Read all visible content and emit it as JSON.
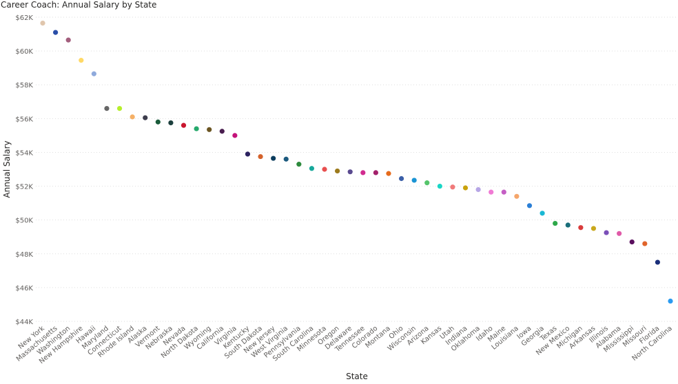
{
  "title": "Career Coach: Annual Salary by State",
  "chart_data": {
    "type": "scatter",
    "title": "Career Coach: Annual Salary by State",
    "xlabel": "State",
    "ylabel": "Annual Salary",
    "ylim": [
      44000,
      62000
    ],
    "yticks": [
      {
        "value": 44000,
        "label": "$44K"
      },
      {
        "value": 46000,
        "label": "$46K"
      },
      {
        "value": 48000,
        "label": "$48K"
      },
      {
        "value": 50000,
        "label": "$50K"
      },
      {
        "value": 52000,
        "label": "$52K"
      },
      {
        "value": 54000,
        "label": "$54K"
      },
      {
        "value": 56000,
        "label": "$56K"
      },
      {
        "value": 58000,
        "label": "$58K"
      },
      {
        "value": 60000,
        "label": "$60K"
      },
      {
        "value": 62000,
        "label": "$62K"
      }
    ],
    "grid": true,
    "points": [
      {
        "state": "New York",
        "value": 61650,
        "color": "#e0c6ad"
      },
      {
        "state": "Massachusetts",
        "value": 61100,
        "color": "#2a4ea8"
      },
      {
        "state": "Washington",
        "value": 60650,
        "color": "#a35e7d"
      },
      {
        "state": "New Hampshire",
        "value": 59450,
        "color": "#ffd966"
      },
      {
        "state": "Hawaii",
        "value": 58650,
        "color": "#8faadc"
      },
      {
        "state": "Maryland",
        "value": 56600,
        "color": "#666666"
      },
      {
        "state": "Connecticut",
        "value": 56600,
        "color": "#b6ef2c"
      },
      {
        "state": "Rhode Island",
        "value": 56100,
        "color": "#f5b066"
      },
      {
        "state": "Alaska",
        "value": 56050,
        "color": "#3d3d4d"
      },
      {
        "state": "Vermont",
        "value": 55800,
        "color": "#1a5c3a"
      },
      {
        "state": "Nebraska",
        "value": 55750,
        "color": "#1c3f3d"
      },
      {
        "state": "Nevada",
        "value": 55600,
        "color": "#c9162f"
      },
      {
        "state": "North Dakota",
        "value": 55400,
        "color": "#26a96c"
      },
      {
        "state": "Wyoming",
        "value": 55350,
        "color": "#6b5522"
      },
      {
        "state": "California",
        "value": 55250,
        "color": "#4a1e4f"
      },
      {
        "state": "Virginia",
        "value": 55000,
        "color": "#c4137a"
      },
      {
        "state": "Kentucky",
        "value": 53900,
        "color": "#2c2260"
      },
      {
        "state": "South Dakota",
        "value": 53750,
        "color": "#d4622b"
      },
      {
        "state": "New Jersey",
        "value": 53650,
        "color": "#0b3c5d"
      },
      {
        "state": "West Virginia",
        "value": 53600,
        "color": "#1c5a7e"
      },
      {
        "state": "Pennsylvania",
        "value": 53300,
        "color": "#2e8a3d"
      },
      {
        "state": "South Carolina",
        "value": 53050,
        "color": "#17a89b"
      },
      {
        "state": "Minnesota",
        "value": 53000,
        "color": "#e84f4f"
      },
      {
        "state": "Oregon",
        "value": 52900,
        "color": "#9c7a1c"
      },
      {
        "state": "Delaware",
        "value": 52850,
        "color": "#5a4a8f"
      },
      {
        "state": "Tennessee",
        "value": 52800,
        "color": "#d12b8f"
      },
      {
        "state": "Colorado",
        "value": 52800,
        "color": "#a3216b"
      },
      {
        "state": "Montana",
        "value": 52750,
        "color": "#e66b1c"
      },
      {
        "state": "Ohio",
        "value": 52450,
        "color": "#3b5fa8"
      },
      {
        "state": "Wisconsin",
        "value": 52350,
        "color": "#1a94d4"
      },
      {
        "state": "Arizona",
        "value": 52200,
        "color": "#55c46b"
      },
      {
        "state": "Kansas",
        "value": 52000,
        "color": "#19d6c6"
      },
      {
        "state": "Utah",
        "value": 51950,
        "color": "#f07a7a"
      },
      {
        "state": "Indiana",
        "value": 51900,
        "color": "#c9a20c"
      },
      {
        "state": "Oklahoma",
        "value": 51800,
        "color": "#b7a6e6"
      },
      {
        "state": "Idaho",
        "value": 51650,
        "color": "#f07ad4"
      },
      {
        "state": "Maine",
        "value": 51650,
        "color": "#c45ec4"
      },
      {
        "state": "Louisiana",
        "value": 51400,
        "color": "#f5a66b"
      },
      {
        "state": "Iowa",
        "value": 50850,
        "color": "#2b7fd6"
      },
      {
        "state": "Georgia",
        "value": 50400,
        "color": "#1ab8d4"
      },
      {
        "state": "Texas",
        "value": 49800,
        "color": "#2ea84a"
      },
      {
        "state": "New Mexico",
        "value": 49700,
        "color": "#1a6e7a"
      },
      {
        "state": "Michigan",
        "value": 49550,
        "color": "#d93b3b"
      },
      {
        "state": "Arkansas",
        "value": 49500,
        "color": "#c9a81c"
      },
      {
        "state": "Illinois",
        "value": 49250,
        "color": "#7b4fb8"
      },
      {
        "state": "Alabama",
        "value": 49200,
        "color": "#e05aa8"
      },
      {
        "state": "Mississippi",
        "value": 48700,
        "color": "#5a0f5e"
      },
      {
        "state": "Missouri",
        "value": 48600,
        "color": "#e0642b"
      },
      {
        "state": "Florida",
        "value": 47500,
        "color": "#1a2f7a"
      },
      {
        "state": "North Carolina",
        "value": 45200,
        "color": "#2b9bf0"
      }
    ]
  }
}
